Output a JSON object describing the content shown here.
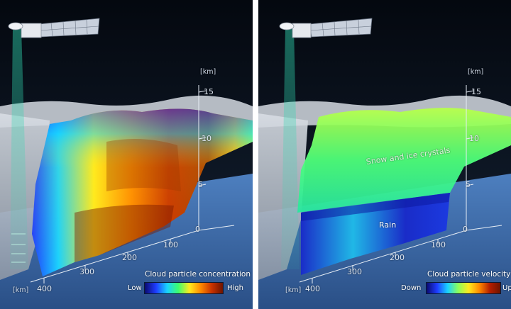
{
  "panels": [
    {
      "id": "concentration",
      "height_axis": {
        "unit": "[km]",
        "ticks": [
          "0",
          "5",
          "10",
          "15"
        ]
      },
      "distance_axis": {
        "unit": "[km]",
        "ticks": [
          "100",
          "200",
          "300",
          "400"
        ]
      },
      "colorbar": {
        "title": "Cloud particle concentration",
        "low": "Low",
        "high": "High"
      }
    },
    {
      "id": "velocity",
      "height_axis": {
        "unit": "[km]",
        "ticks": [
          "0",
          "5",
          "10",
          "15"
        ]
      },
      "distance_axis": {
        "unit": "[km]",
        "ticks": [
          "100",
          "200",
          "300",
          "400"
        ]
      },
      "colorbar": {
        "title": "Cloud particle velocity",
        "low": "Down",
        "high": "Up"
      },
      "regions": {
        "upper": "Snow and ice crystals",
        "lower": "Rain"
      }
    }
  ],
  "colors": {
    "sky_top": "#050a14",
    "sky_bottom": "#1c2a3d",
    "ocean": "#3c6fb0",
    "cloud_shelf": "#c9ced6",
    "beam": "#2fd7b0",
    "concentration_scale": [
      "#0a0a6e",
      "#1e3cff",
      "#19d2ff",
      "#3cff6e",
      "#ffea1e",
      "#ff8a00",
      "#c83200",
      "#6e1400"
    ],
    "velocity_scale": [
      "#0a0a6e",
      "#1e3cff",
      "#19d2ff",
      "#8cff5a",
      "#ffea1e",
      "#ff8a00",
      "#b41e00",
      "#6e1400"
    ]
  }
}
